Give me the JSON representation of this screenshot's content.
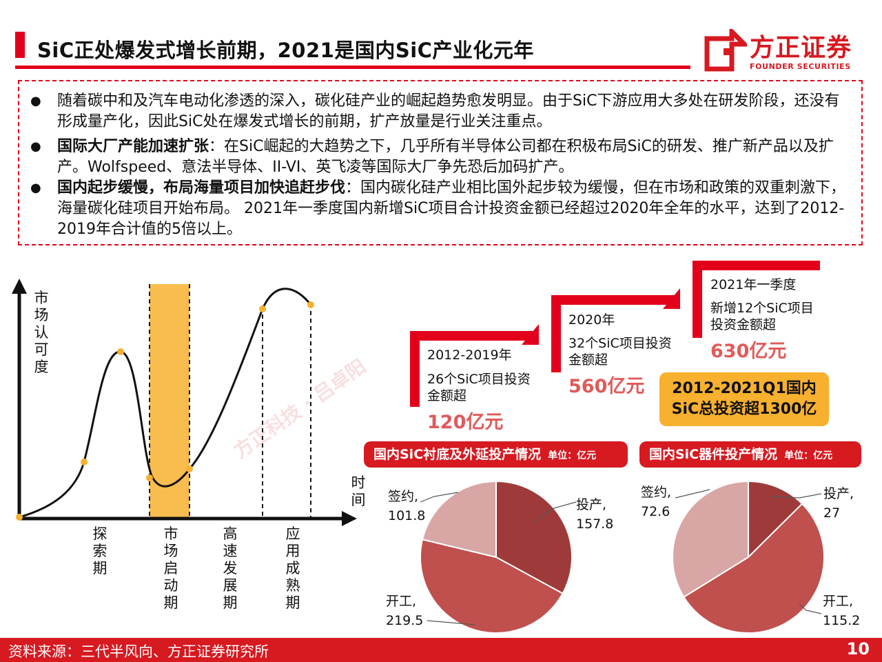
{
  "header": {
    "title": "SiC正处爆发式增长前期，2021是国内SiC产业化元年",
    "logo_text": "方正证券",
    "logo_sub": "FOUNDER SECURITIES"
  },
  "bullets": {
    "b1": "随着碳中和及汽车电动化渗透的深入，碳化硅产业的崛起趋势愈发明显。由于SiC下游应用大多处在研发阶段，还没有形成量产化，因此SiC处在爆发式增长的前期，扩产放量是行业关注重点。",
    "b2_bold": "国际大厂产能加速扩张",
    "b2_rest": "：在SiC崛起的大趋势之下，几乎所有半导体公司都在积极布局SiC的研发、推广新产品以及扩产。Wolfspeed、意法半导体、II-VI、英飞凌等国际大厂争先恐后加码扩产。",
    "b3_bold": "国内起步缓慢，布局海量项目加快追赶步伐",
    "b3_rest": "：国内碳化硅产业相比国外起步较为缓慢，但在市场和政策的双重刺激下，海量碳化硅项目开始布局。 2021年一季度国内新增SiC项目合计投资金额已经超过2020年全年的水平，达到了2012-2019年合计值的5倍以上。"
  },
  "watermark": "方正科技 · 吕卓阳",
  "footer": {
    "source": "资料来源：三代半风向、方正证券研究所",
    "page": "10"
  },
  "colors": {
    "brand_red": "#d71920",
    "highlight_orange": "#f8b02f",
    "pie_dark": "#9e3b3a",
    "pie_mid": "#c0504d",
    "pie_light": "#d9a6a6"
  },
  "chart_data": [
    {
      "type": "line",
      "ylabel": "市场认可度",
      "xlabel": "时间",
      "phases": [
        "探索期",
        "市场启动期",
        "高速发展期",
        "应用成熟期"
      ],
      "highlighted_phase": "市场启动期"
    },
    {
      "type": "bar",
      "categories": [
        "2012-2019年",
        "2020年",
        "2021年一季度"
      ],
      "descriptions": [
        "26个SiC项目投资金额超",
        "32个SiC项目投资金额超",
        "新增12个SiC项目投资金额超"
      ],
      "value_labels": [
        "120亿元",
        "560亿元",
        "630亿元"
      ],
      "values": [
        120,
        560,
        630
      ],
      "unit": "亿元",
      "total_label": "2012-2021Q1国内SiC总投资超1300亿"
    },
    {
      "type": "pie",
      "title": "国内SiC衬底及外延投产情况",
      "unit_label": "单位：亿元",
      "slices": [
        {
          "name": "投产",
          "value": 157.8,
          "color": "#9e3b3a"
        },
        {
          "name": "开工",
          "value": 219.5,
          "color": "#c0504d"
        },
        {
          "name": "签约",
          "value": 101.8,
          "color": "#d9a6a6"
        }
      ]
    },
    {
      "type": "pie",
      "title": "国内SiC器件投产情况",
      "unit_label": "单位：亿元",
      "slices": [
        {
          "name": "投产",
          "value": 27,
          "color": "#9e3b3a"
        },
        {
          "name": "开工",
          "value": 115.2,
          "color": "#c0504d"
        },
        {
          "name": "签约",
          "value": 72.6,
          "color": "#d9a6a6"
        }
      ]
    }
  ]
}
